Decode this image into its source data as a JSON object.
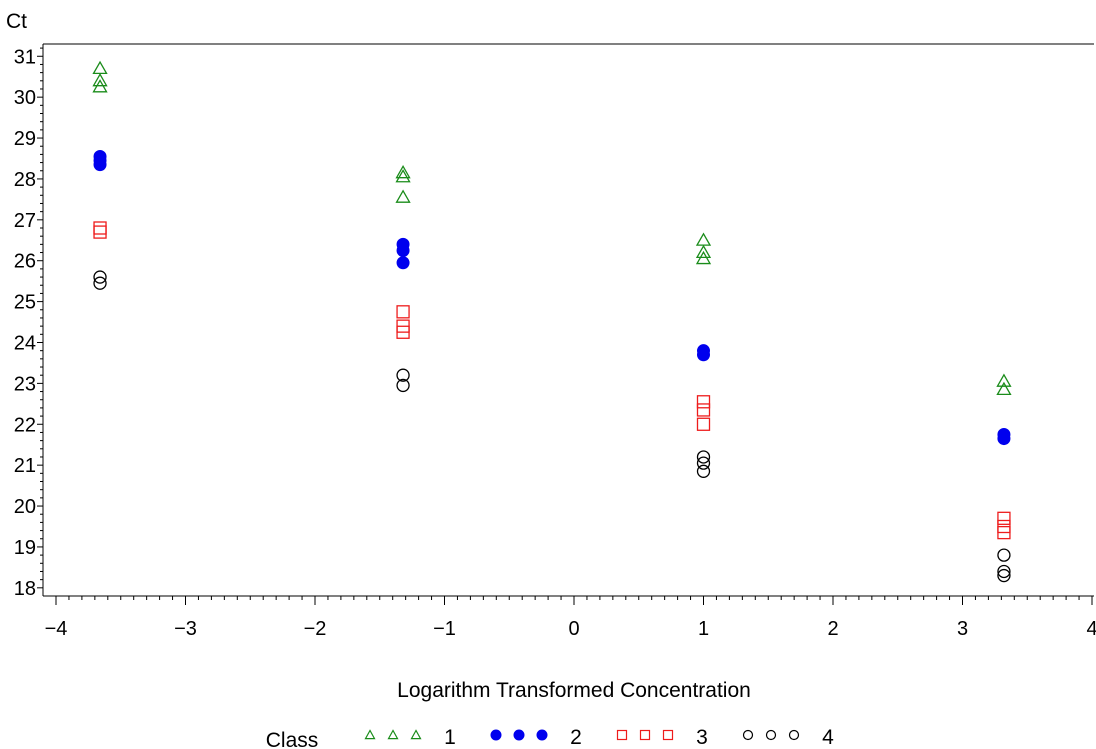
{
  "chart_data": {
    "type": "scatter",
    "ylabel": "Ct",
    "xlabel": "Logarithm Transformed Concentration",
    "xlim": [
      -4,
      4
    ],
    "ylim": [
      17.8,
      31.3
    ],
    "x_ticks": [
      "-4",
      "-3",
      "-2",
      "-1",
      "0",
      "1",
      "2",
      "3",
      "4"
    ],
    "y_ticks": [
      "18",
      "19",
      "20",
      "21",
      "22",
      "23",
      "24",
      "25",
      "26",
      "27",
      "28",
      "29",
      "30",
      "31"
    ],
    "grid": false,
    "legend": {
      "title": "Class",
      "placement": "bottom"
    },
    "series": [
      {
        "name": "1",
        "marker": "triangle",
        "color": "#1a8c1a",
        "points": [
          [
            -3.66,
            30.7
          ],
          [
            -3.66,
            30.4
          ],
          [
            -3.66,
            30.25
          ],
          [
            -1.32,
            28.15
          ],
          [
            -1.32,
            28.05
          ],
          [
            -1.32,
            27.55
          ],
          [
            1.0,
            26.5
          ],
          [
            1.0,
            26.2
          ],
          [
            1.0,
            26.05
          ],
          [
            3.32,
            23.05
          ],
          [
            3.32,
            22.85
          ]
        ]
      },
      {
        "name": "2",
        "marker": "filled-circle",
        "color": "#0000ee",
        "points": [
          [
            -3.66,
            28.55
          ],
          [
            -3.66,
            28.45
          ],
          [
            -3.66,
            28.35
          ],
          [
            -1.32,
            26.4
          ],
          [
            -1.32,
            26.25
          ],
          [
            -1.32,
            25.95
          ],
          [
            1.0,
            23.8
          ],
          [
            1.0,
            23.7
          ],
          [
            3.32,
            21.75
          ],
          [
            3.32,
            21.65
          ]
        ]
      },
      {
        "name": "3",
        "marker": "square",
        "color": "#ee1c1c",
        "points": [
          [
            -3.66,
            26.8
          ],
          [
            -3.66,
            26.7
          ],
          [
            -1.32,
            24.75
          ],
          [
            -1.32,
            24.4
          ],
          [
            -1.32,
            24.25
          ],
          [
            1.0,
            22.55
          ],
          [
            1.0,
            22.35
          ],
          [
            1.0,
            22.0
          ],
          [
            3.32,
            19.7
          ],
          [
            3.32,
            19.5
          ],
          [
            3.32,
            19.35
          ]
        ]
      },
      {
        "name": "4",
        "marker": "circle",
        "color": "#000000",
        "points": [
          [
            -3.66,
            25.6
          ],
          [
            -3.66,
            25.45
          ],
          [
            -1.32,
            23.2
          ],
          [
            -1.32,
            22.95
          ],
          [
            1.0,
            21.2
          ],
          [
            1.0,
            21.05
          ],
          [
            1.0,
            20.85
          ],
          [
            3.32,
            18.8
          ],
          [
            3.32,
            18.4
          ],
          [
            3.32,
            18.3
          ]
        ]
      }
    ]
  }
}
